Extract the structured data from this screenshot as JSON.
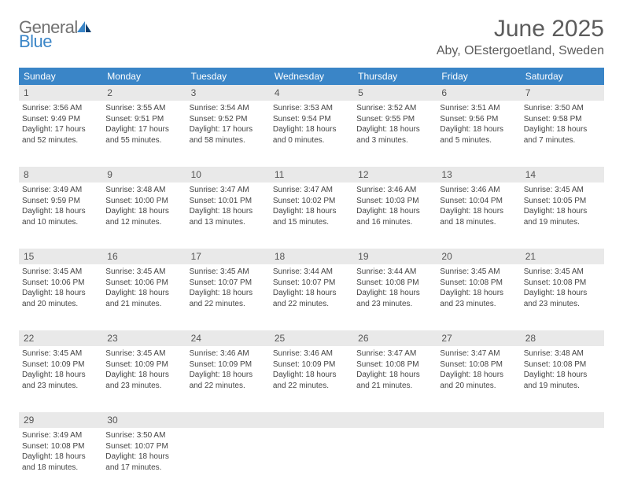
{
  "logo": {
    "general": "General",
    "blue": "Blue"
  },
  "title": "June 2025",
  "location": "Aby, OEstergoetland, Sweden",
  "colors": {
    "header_bg": "#3a85c7",
    "header_text": "#ffffff",
    "daynum_bg": "#e9e9e9",
    "week_border": "#3a6ea0",
    "title_color": "#5c5c5c",
    "body_text": "#444444"
  },
  "dayHeaders": [
    "Sunday",
    "Monday",
    "Tuesday",
    "Wednesday",
    "Thursday",
    "Friday",
    "Saturday"
  ],
  "weeks": [
    {
      "nums": [
        "1",
        "2",
        "3",
        "4",
        "5",
        "6",
        "7"
      ],
      "cells": [
        {
          "sunrise": "Sunrise: 3:56 AM",
          "sunset": "Sunset: 9:49 PM",
          "daylight": "Daylight: 17 hours and 52 minutes."
        },
        {
          "sunrise": "Sunrise: 3:55 AM",
          "sunset": "Sunset: 9:51 PM",
          "daylight": "Daylight: 17 hours and 55 minutes."
        },
        {
          "sunrise": "Sunrise: 3:54 AM",
          "sunset": "Sunset: 9:52 PM",
          "daylight": "Daylight: 17 hours and 58 minutes."
        },
        {
          "sunrise": "Sunrise: 3:53 AM",
          "sunset": "Sunset: 9:54 PM",
          "daylight": "Daylight: 18 hours and 0 minutes."
        },
        {
          "sunrise": "Sunrise: 3:52 AM",
          "sunset": "Sunset: 9:55 PM",
          "daylight": "Daylight: 18 hours and 3 minutes."
        },
        {
          "sunrise": "Sunrise: 3:51 AM",
          "sunset": "Sunset: 9:56 PM",
          "daylight": "Daylight: 18 hours and 5 minutes."
        },
        {
          "sunrise": "Sunrise: 3:50 AM",
          "sunset": "Sunset: 9:58 PM",
          "daylight": "Daylight: 18 hours and 7 minutes."
        }
      ]
    },
    {
      "nums": [
        "8",
        "9",
        "10",
        "11",
        "12",
        "13",
        "14"
      ],
      "cells": [
        {
          "sunrise": "Sunrise: 3:49 AM",
          "sunset": "Sunset: 9:59 PM",
          "daylight": "Daylight: 18 hours and 10 minutes."
        },
        {
          "sunrise": "Sunrise: 3:48 AM",
          "sunset": "Sunset: 10:00 PM",
          "daylight": "Daylight: 18 hours and 12 minutes."
        },
        {
          "sunrise": "Sunrise: 3:47 AM",
          "sunset": "Sunset: 10:01 PM",
          "daylight": "Daylight: 18 hours and 13 minutes."
        },
        {
          "sunrise": "Sunrise: 3:47 AM",
          "sunset": "Sunset: 10:02 PM",
          "daylight": "Daylight: 18 hours and 15 minutes."
        },
        {
          "sunrise": "Sunrise: 3:46 AM",
          "sunset": "Sunset: 10:03 PM",
          "daylight": "Daylight: 18 hours and 16 minutes."
        },
        {
          "sunrise": "Sunrise: 3:46 AM",
          "sunset": "Sunset: 10:04 PM",
          "daylight": "Daylight: 18 hours and 18 minutes."
        },
        {
          "sunrise": "Sunrise: 3:45 AM",
          "sunset": "Sunset: 10:05 PM",
          "daylight": "Daylight: 18 hours and 19 minutes."
        }
      ]
    },
    {
      "nums": [
        "15",
        "16",
        "17",
        "18",
        "19",
        "20",
        "21"
      ],
      "cells": [
        {
          "sunrise": "Sunrise: 3:45 AM",
          "sunset": "Sunset: 10:06 PM",
          "daylight": "Daylight: 18 hours and 20 minutes."
        },
        {
          "sunrise": "Sunrise: 3:45 AM",
          "sunset": "Sunset: 10:06 PM",
          "daylight": "Daylight: 18 hours and 21 minutes."
        },
        {
          "sunrise": "Sunrise: 3:45 AM",
          "sunset": "Sunset: 10:07 PM",
          "daylight": "Daylight: 18 hours and 22 minutes."
        },
        {
          "sunrise": "Sunrise: 3:44 AM",
          "sunset": "Sunset: 10:07 PM",
          "daylight": "Daylight: 18 hours and 22 minutes."
        },
        {
          "sunrise": "Sunrise: 3:44 AM",
          "sunset": "Sunset: 10:08 PM",
          "daylight": "Daylight: 18 hours and 23 minutes."
        },
        {
          "sunrise": "Sunrise: 3:45 AM",
          "sunset": "Sunset: 10:08 PM",
          "daylight": "Daylight: 18 hours and 23 minutes."
        },
        {
          "sunrise": "Sunrise: 3:45 AM",
          "sunset": "Sunset: 10:08 PM",
          "daylight": "Daylight: 18 hours and 23 minutes."
        }
      ]
    },
    {
      "nums": [
        "22",
        "23",
        "24",
        "25",
        "26",
        "27",
        "28"
      ],
      "cells": [
        {
          "sunrise": "Sunrise: 3:45 AM",
          "sunset": "Sunset: 10:09 PM",
          "daylight": "Daylight: 18 hours and 23 minutes."
        },
        {
          "sunrise": "Sunrise: 3:45 AM",
          "sunset": "Sunset: 10:09 PM",
          "daylight": "Daylight: 18 hours and 23 minutes."
        },
        {
          "sunrise": "Sunrise: 3:46 AM",
          "sunset": "Sunset: 10:09 PM",
          "daylight": "Daylight: 18 hours and 22 minutes."
        },
        {
          "sunrise": "Sunrise: 3:46 AM",
          "sunset": "Sunset: 10:09 PM",
          "daylight": "Daylight: 18 hours and 22 minutes."
        },
        {
          "sunrise": "Sunrise: 3:47 AM",
          "sunset": "Sunset: 10:08 PM",
          "daylight": "Daylight: 18 hours and 21 minutes."
        },
        {
          "sunrise": "Sunrise: 3:47 AM",
          "sunset": "Sunset: 10:08 PM",
          "daylight": "Daylight: 18 hours and 20 minutes."
        },
        {
          "sunrise": "Sunrise: 3:48 AM",
          "sunset": "Sunset: 10:08 PM",
          "daylight": "Daylight: 18 hours and 19 minutes."
        }
      ]
    },
    {
      "nums": [
        "29",
        "30",
        "",
        "",
        "",
        "",
        ""
      ],
      "cells": [
        {
          "sunrise": "Sunrise: 3:49 AM",
          "sunset": "Sunset: 10:08 PM",
          "daylight": "Daylight: 18 hours and 18 minutes."
        },
        {
          "sunrise": "Sunrise: 3:50 AM",
          "sunset": "Sunset: 10:07 PM",
          "daylight": "Daylight: 18 hours and 17 minutes."
        },
        null,
        null,
        null,
        null,
        null
      ]
    }
  ]
}
